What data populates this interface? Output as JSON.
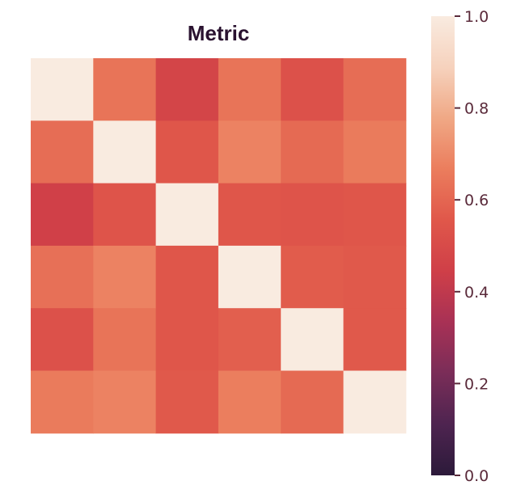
{
  "chart_data": {
    "type": "heatmap",
    "title": "Metric",
    "xlabel": "",
    "ylabel": "",
    "rows": 6,
    "cols": 6,
    "values": [
      [
        1.0,
        0.64,
        0.47,
        0.64,
        0.53,
        0.62
      ],
      [
        0.62,
        1.0,
        0.55,
        0.68,
        0.61,
        0.66
      ],
      [
        0.45,
        0.54,
        1.0,
        0.55,
        0.54,
        0.55
      ],
      [
        0.63,
        0.68,
        0.55,
        1.0,
        0.57,
        0.56
      ],
      [
        0.53,
        0.64,
        0.55,
        0.58,
        1.0,
        0.56
      ],
      [
        0.66,
        0.68,
        0.56,
        0.67,
        0.61,
        1.0
      ]
    ],
    "colorbar": {
      "min": 0.0,
      "max": 1.0,
      "ticks": [
        0.0,
        0.2,
        0.4,
        0.6,
        0.8,
        1.0
      ],
      "tick_labels": [
        "0.0",
        "0.2",
        "0.4",
        "0.6",
        "0.8",
        "1.0"
      ]
    },
    "colormap": [
      "#2c1a3a",
      "#4e2450",
      "#7a2d58",
      "#a83155",
      "#cf3f48",
      "#e0574a",
      "#eb7d5d",
      "#f0a885",
      "#f6d2bd",
      "#f9ebe0"
    ]
  }
}
